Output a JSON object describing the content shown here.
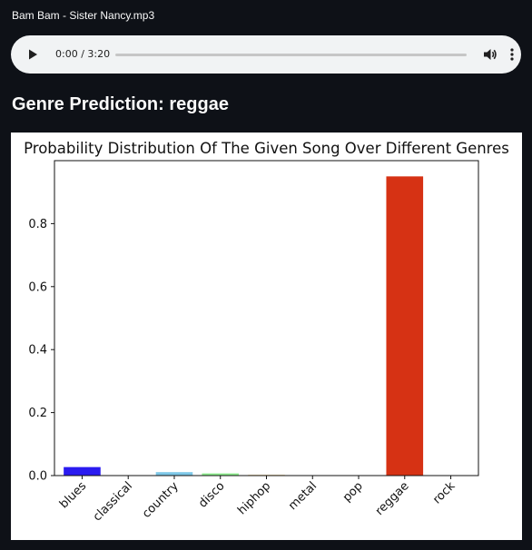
{
  "file": {
    "name": "Bam Bam - Sister Nancy.mp3"
  },
  "player": {
    "time": "0:00 / 3:20",
    "progress": 0.0,
    "play_icon": "play-icon",
    "volume_icon": "volume-icon",
    "more_icon": "more-vertical-icon"
  },
  "prediction": {
    "heading": "Genre Prediction: reggae"
  },
  "chart_data": {
    "type": "bar",
    "title": "Probability Distribution Of The Given Song Over Different Genres",
    "xlabel": "",
    "ylabel": "",
    "categories": [
      "blues",
      "classical",
      "country",
      "disco",
      "hiphop",
      "metal",
      "pop",
      "reggae",
      "rock"
    ],
    "values": [
      0.027,
      0.001,
      0.011,
      0.007,
      0.003,
      0.001,
      0.001,
      0.95,
      0.001
    ],
    "colors": [
      "#2a1bf0",
      "#ffffff",
      "#7ec8e8",
      "#90ee90",
      "#f5deb3",
      "#dddddd",
      "#dddddd",
      "#d63214",
      "#dddddd"
    ],
    "ylim": [
      0,
      1.0
    ],
    "yticks": [
      0.0,
      0.2,
      0.4,
      0.6,
      0.8
    ],
    "ytick_labels": [
      "0.0",
      "0.2",
      "0.4",
      "0.6",
      "0.8"
    ],
    "grid": false,
    "legend": "none"
  }
}
